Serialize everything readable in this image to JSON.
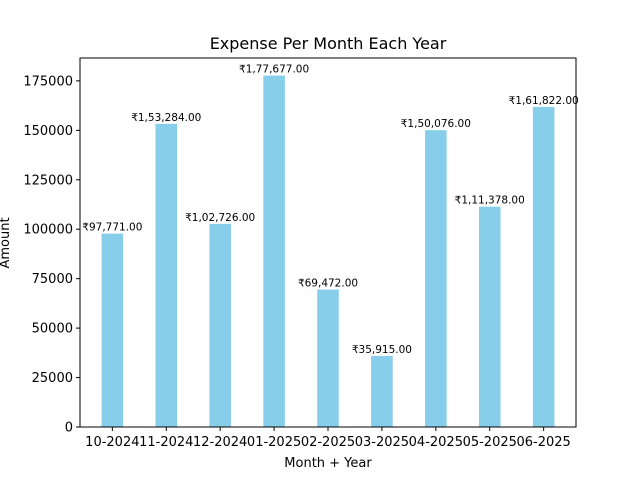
{
  "chart_data": {
    "type": "bar",
    "title": "Expense Per Month Each Year",
    "xlabel": "Month + Year",
    "ylabel": "Amount",
    "categories": [
      "10-2024",
      "11-2024",
      "12-2024",
      "01-2025",
      "02-2025",
      "03-2025",
      "04-2025",
      "05-2025",
      "06-2025"
    ],
    "values": [
      97771,
      153284,
      102726,
      177677,
      69472,
      35915,
      150076,
      111378,
      161822
    ],
    "value_labels": [
      "₹97,771.00",
      "₹1,53,284.00",
      "₹1,02,726.00",
      "₹1,77,677.00",
      "₹69,472.00",
      "₹35,915.00",
      "₹1,50,076.00",
      "₹1,11,378.00",
      "₹1,61,822.00"
    ],
    "yticks": [
      0,
      25000,
      50000,
      75000,
      100000,
      125000,
      150000,
      175000
    ],
    "ytick_labels": [
      "0",
      "25000",
      "50000",
      "75000",
      "100000",
      "125000",
      "150000",
      "175000"
    ],
    "ylim": [
      0,
      186561
    ],
    "bar_color": "#87ceeb",
    "grid": false,
    "legend": "none"
  }
}
